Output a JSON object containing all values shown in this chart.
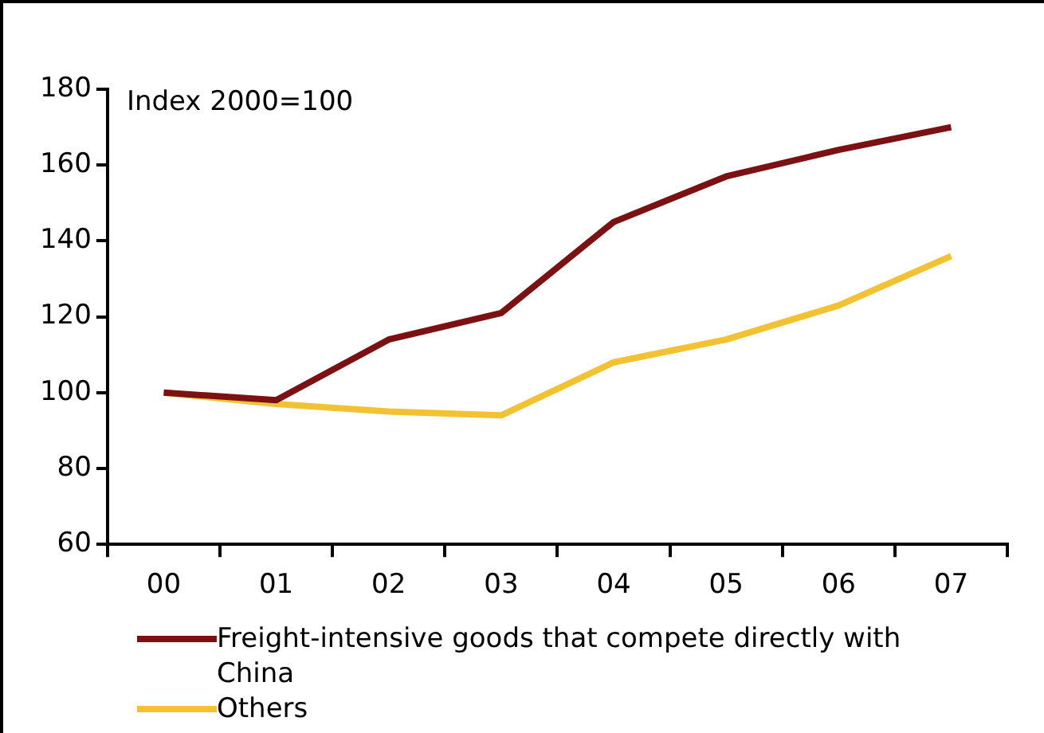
{
  "chart_data": {
    "type": "line",
    "categories": [
      "00",
      "01",
      "02",
      "03",
      "04",
      "05",
      "06",
      "07"
    ],
    "series": [
      {
        "name": "Freight-intensive goods that compete directly with China",
        "color": "#7b1113",
        "values": [
          100,
          98,
          114,
          121,
          145,
          157,
          164,
          170
        ]
      },
      {
        "name": "Others",
        "color": "#f2c233",
        "values": [
          100,
          97,
          95,
          94,
          108,
          114,
          123,
          136
        ]
      }
    ],
    "ylim": [
      60,
      180
    ],
    "yticks": [
      60,
      80,
      100,
      120,
      140,
      160,
      180
    ],
    "grid": false,
    "legend": "bottom",
    "marker": "none",
    "line_style": "solid",
    "annotations": [
      "Index 2000=100"
    ]
  }
}
